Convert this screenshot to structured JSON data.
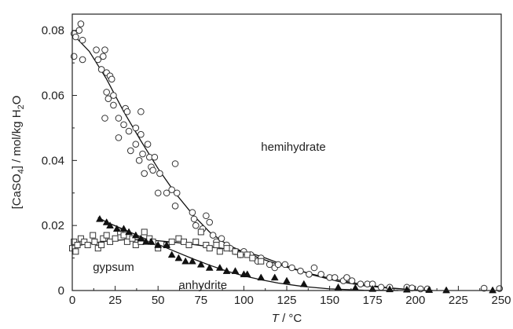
{
  "chart_data": {
    "type": "scatter",
    "xlabel": {
      "var": "T",
      "unit": " / °C"
    },
    "ylabel": {
      "pre": "[CaSO",
      "s1": "4",
      "mid": "] / mol/kg H",
      "s2": "2",
      "post": "O"
    },
    "xlim": [
      0,
      250
    ],
    "ylim": [
      0,
      0.085
    ],
    "x_ticks": [
      0,
      25,
      50,
      75,
      100,
      125,
      150,
      175,
      200,
      225,
      250
    ],
    "y_ticks": [
      0,
      0.02,
      0.04,
      0.06,
      0.08
    ],
    "x_tick_labels": [
      "0",
      "25",
      "50",
      "75",
      "100",
      "125",
      "150",
      "175",
      "200",
      "225",
      "250"
    ],
    "y_tick_labels": [
      "0",
      "0.02",
      "0.04",
      "0.06",
      "0.08"
    ],
    "grid": false,
    "legend": "none",
    "annotations": [
      {
        "text": "hemihydrate",
        "x": 110,
        "y": 0.043
      },
      {
        "text": "gypsum",
        "x": 12,
        "y": 0.006
      },
      {
        "text": "anhydrite",
        "x": 62,
        "y": 0.0005
      }
    ],
    "series": [
      {
        "marker": "circle-open",
        "points": [
          [
            1,
            0.079
          ],
          [
            1,
            0.072
          ],
          [
            2,
            0.078
          ],
          [
            4,
            0.08
          ],
          [
            5,
            0.082
          ],
          [
            6,
            0.077
          ],
          [
            6,
            0.071
          ],
          [
            14,
            0.074
          ],
          [
            15,
            0.071
          ],
          [
            17,
            0.068
          ],
          [
            18,
            0.072
          ],
          [
            19,
            0.074
          ],
          [
            20,
            0.067
          ],
          [
            20,
            0.061
          ],
          [
            21,
            0.059
          ],
          [
            22,
            0.066
          ],
          [
            23,
            0.065
          ],
          [
            24,
            0.06
          ],
          [
            19,
            0.053
          ],
          [
            24,
            0.057
          ],
          [
            27,
            0.053
          ],
          [
            27,
            0.047
          ],
          [
            30,
            0.051
          ],
          [
            31,
            0.056
          ],
          [
            32,
            0.055
          ],
          [
            33,
            0.049
          ],
          [
            34,
            0.043
          ],
          [
            37,
            0.05
          ],
          [
            37,
            0.045
          ],
          [
            39,
            0.04
          ],
          [
            40,
            0.055
          ],
          [
            40,
            0.048
          ],
          [
            41,
            0.042
          ],
          [
            42,
            0.036
          ],
          [
            44,
            0.045
          ],
          [
            45,
            0.041
          ],
          [
            46,
            0.038
          ],
          [
            47,
            0.037
          ],
          [
            48,
            0.041
          ],
          [
            50,
            0.03
          ],
          [
            51,
            0.036
          ],
          [
            55,
            0.03
          ],
          [
            58,
            0.031
          ],
          [
            60,
            0.039
          ],
          [
            60,
            0.026
          ],
          [
            61,
            0.03
          ],
          [
            70,
            0.024
          ],
          [
            71,
            0.022
          ],
          [
            72,
            0.02
          ],
          [
            76,
            0.019
          ],
          [
            78,
            0.023
          ],
          [
            80,
            0.021
          ],
          [
            82,
            0.017
          ],
          [
            84,
            0.015
          ],
          [
            87,
            0.016
          ],
          [
            90,
            0.014
          ],
          [
            92,
            0.013
          ],
          [
            95,
            0.012
          ],
          [
            98,
            0.011
          ],
          [
            100,
            0.012
          ],
          [
            104,
            0.011
          ],
          [
            108,
            0.009
          ],
          [
            110,
            0.01
          ],
          [
            115,
            0.008
          ],
          [
            118,
            0.007
          ],
          [
            120,
            0.008
          ],
          [
            124,
            0.008
          ],
          [
            128,
            0.007
          ],
          [
            133,
            0.006
          ],
          [
            138,
            0.005
          ],
          [
            141,
            0.007
          ],
          [
            145,
            0.005
          ],
          [
            150,
            0.004
          ],
          [
            153,
            0.004
          ],
          [
            158,
            0.003
          ],
          [
            160,
            0.004
          ],
          [
            163,
            0.003
          ],
          [
            168,
            0.002
          ],
          [
            172,
            0.002
          ],
          [
            175,
            0.002
          ],
          [
            180,
            0.001
          ],
          [
            185,
            0.001
          ],
          [
            195,
            0.001
          ],
          [
            198,
            0.0008
          ],
          [
            203,
            0.0005
          ],
          [
            207,
            0.0005
          ],
          [
            240,
            0.0007
          ],
          [
            249,
            0.0006
          ]
        ]
      },
      {
        "marker": "square-open",
        "points": [
          [
            0,
            0.013
          ],
          [
            1,
            0.015
          ],
          [
            2,
            0.012
          ],
          [
            3,
            0.014
          ],
          [
            5,
            0.016
          ],
          [
            7,
            0.015
          ],
          [
            9,
            0.014
          ],
          [
            12,
            0.017
          ],
          [
            13,
            0.015
          ],
          [
            15,
            0.013
          ],
          [
            17,
            0.014
          ],
          [
            18,
            0.016
          ],
          [
            20,
            0.017
          ],
          [
            22,
            0.015
          ],
          [
            25,
            0.016
          ],
          [
            28,
            0.018
          ],
          [
            30,
            0.017
          ],
          [
            32,
            0.015
          ],
          [
            35,
            0.016
          ],
          [
            37,
            0.014
          ],
          [
            40,
            0.015
          ],
          [
            42,
            0.018
          ],
          [
            45,
            0.016
          ],
          [
            47,
            0.015
          ],
          [
            50,
            0.013
          ],
          [
            55,
            0.014
          ],
          [
            58,
            0.015
          ],
          [
            62,
            0.016
          ],
          [
            65,
            0.015
          ],
          [
            68,
            0.014
          ],
          [
            72,
            0.015
          ],
          [
            75,
            0.018
          ],
          [
            78,
            0.014
          ],
          [
            80,
            0.013
          ],
          [
            84,
            0.014
          ],
          [
            86,
            0.012
          ],
          [
            90,
            0.013
          ],
          [
            95,
            0.012
          ],
          [
            98,
            0.011
          ],
          [
            102,
            0.011
          ],
          [
            105,
            0.01
          ],
          [
            110,
            0.009
          ]
        ]
      },
      {
        "marker": "triangle-filled",
        "points": [
          [
            16,
            0.022
          ],
          [
            20,
            0.021
          ],
          [
            22,
            0.02
          ],
          [
            26,
            0.019
          ],
          [
            30,
            0.019
          ],
          [
            33,
            0.018
          ],
          [
            37,
            0.017
          ],
          [
            40,
            0.016
          ],
          [
            43,
            0.015
          ],
          [
            46,
            0.015
          ],
          [
            50,
            0.014
          ],
          [
            55,
            0.014
          ],
          [
            58,
            0.011
          ],
          [
            62,
            0.01
          ],
          [
            66,
            0.009
          ],
          [
            70,
            0.009
          ],
          [
            75,
            0.008
          ],
          [
            80,
            0.007
          ],
          [
            86,
            0.007
          ],
          [
            90,
            0.006
          ],
          [
            95,
            0.006
          ],
          [
            100,
            0.005
          ],
          [
            102,
            0.005
          ],
          [
            110,
            0.004
          ],
          [
            118,
            0.004
          ],
          [
            125,
            0.003
          ],
          [
            135,
            0.002
          ],
          [
            155,
            0.001
          ],
          [
            165,
            0.0008
          ],
          [
            175,
            0.0005
          ],
          [
            185,
            0.0004
          ],
          [
            195,
            0.0003
          ],
          [
            208,
            0.0002
          ],
          [
            218,
            0.0001
          ],
          [
            245,
            0.0001
          ]
        ]
      }
    ],
    "fit_curves": [
      {
        "points": [
          [
            0,
            0.079
          ],
          [
            10,
            0.0735
          ],
          [
            20,
            0.065
          ],
          [
            30,
            0.055
          ],
          [
            40,
            0.046
          ],
          [
            50,
            0.0375
          ],
          [
            60,
            0.03
          ],
          [
            70,
            0.0235
          ],
          [
            80,
            0.018
          ],
          [
            90,
            0.0142
          ],
          [
            100,
            0.0118
          ],
          [
            110,
            0.0098
          ],
          [
            125,
            0.0072
          ],
          [
            140,
            0.005
          ],
          [
            155,
            0.0032
          ],
          [
            170,
            0.0018
          ],
          [
            185,
            0.0008
          ],
          [
            200,
            0.0002
          ],
          [
            210,
            0.0
          ]
        ]
      },
      {
        "points": [
          [
            0,
            0.0135
          ],
          [
            10,
            0.0145
          ],
          [
            20,
            0.0152
          ],
          [
            30,
            0.0156
          ],
          [
            40,
            0.0156
          ],
          [
            50,
            0.0153
          ],
          [
            60,
            0.0148
          ],
          [
            70,
            0.0142
          ],
          [
            80,
            0.0135
          ],
          [
            90,
            0.0128
          ],
          [
            100,
            0.012
          ],
          [
            110,
            0.0105
          ],
          [
            125,
            0.0075
          ],
          [
            140,
            0.0048
          ],
          [
            155,
            0.0028
          ],
          [
            170,
            0.0015
          ],
          [
            185,
            0.0007
          ],
          [
            200,
            0.0002
          ],
          [
            210,
            0.0
          ]
        ]
      },
      {
        "points": [
          [
            15,
            0.0225
          ],
          [
            20,
            0.021
          ],
          [
            30,
            0.0188
          ],
          [
            40,
            0.0165
          ],
          [
            50,
            0.0142
          ],
          [
            60,
            0.012
          ],
          [
            70,
            0.0098
          ],
          [
            80,
            0.0078
          ],
          [
            90,
            0.006
          ],
          [
            100,
            0.0045
          ],
          [
            110,
            0.0033
          ],
          [
            120,
            0.0023
          ],
          [
            135,
            0.0012
          ],
          [
            150,
            0.0005
          ],
          [
            170,
            0.0001
          ],
          [
            190,
            0.0
          ]
        ]
      }
    ]
  }
}
